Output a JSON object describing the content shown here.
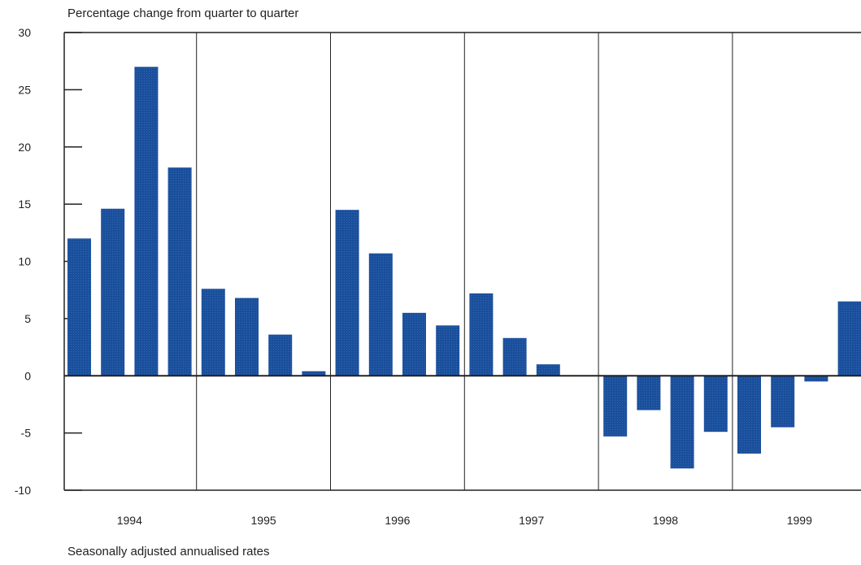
{
  "chart_data": {
    "type": "bar",
    "title": "",
    "subtitle": "Percentage change from quarter to quarter",
    "footnote": "Seasonally adjusted annualised rates",
    "xlabel": "",
    "ylabel": "",
    "ylim": [
      -10,
      30
    ],
    "yticks": [
      30,
      25,
      20,
      15,
      10,
      5,
      0,
      -5,
      -10
    ],
    "year_labels": [
      "1994",
      "1995",
      "1996",
      "1997",
      "1998",
      "1999"
    ],
    "categories": [
      "1994 Q1",
      "1994 Q2",
      "1994 Q3",
      "1994 Q4",
      "1995 Q1",
      "1995 Q2",
      "1995 Q3",
      "1995 Q4",
      "1996 Q1",
      "1996 Q2",
      "1996 Q3",
      "1996 Q4",
      "1997 Q1",
      "1997 Q2",
      "1997 Q3",
      "1997 Q4",
      "1998 Q1",
      "1998 Q2",
      "1998 Q3",
      "1998 Q4",
      "1999 Q1",
      "1999 Q2",
      "1999 Q3",
      "1999 Q4"
    ],
    "values": [
      12.0,
      14.6,
      27.0,
      18.2,
      7.6,
      6.8,
      3.6,
      0.4,
      14.5,
      10.7,
      5.5,
      4.4,
      7.2,
      3.3,
      1.0,
      0.0,
      -5.3,
      -3.0,
      -8.1,
      -4.9,
      -6.8,
      -4.5,
      -0.5,
      6.5
    ],
    "bar_color": "#1a4f9c",
    "grid": false
  }
}
